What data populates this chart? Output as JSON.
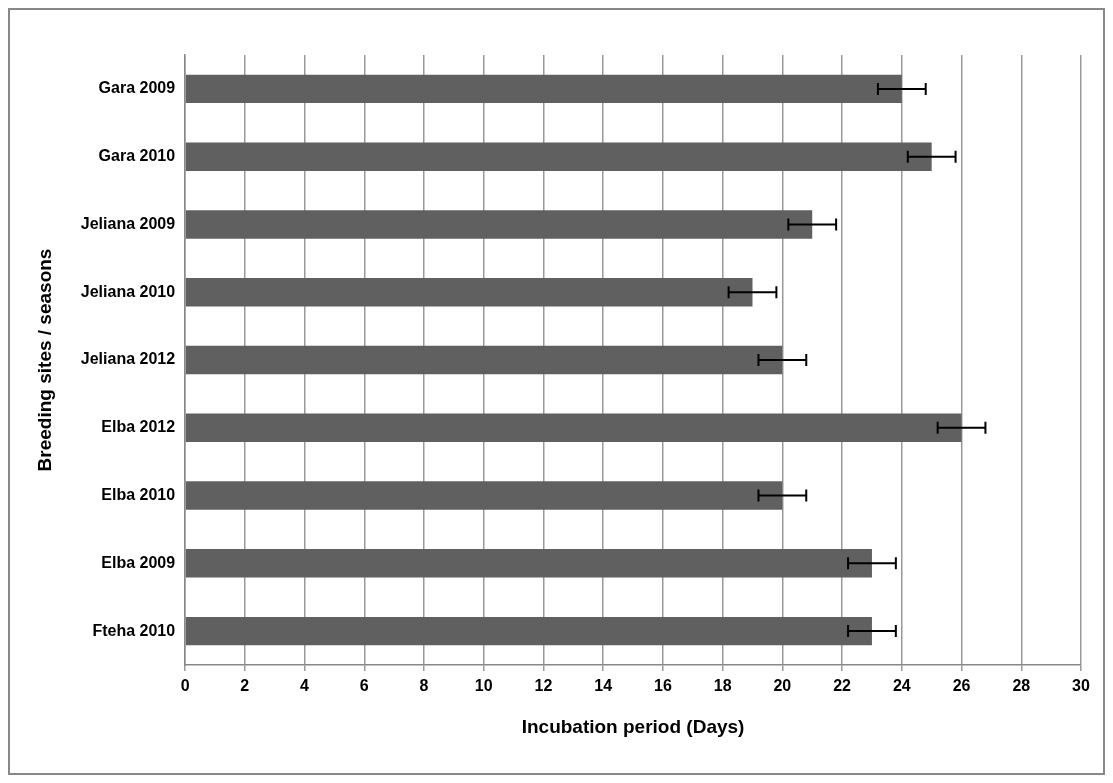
{
  "chart_data": {
    "type": "bar",
    "orientation": "horizontal",
    "xlabel": "Incubation period (Days)",
    "ylabel": "Breeding sites / seasons",
    "categories": [
      "Gara 2009",
      "Gara 2010",
      "Jeliana 2009",
      "Jeliana 2010",
      "Jeliana 2012",
      "Elba 2012",
      "Elba 2010",
      "Elba 2009",
      "Fteha 2010"
    ],
    "values": [
      24,
      25,
      21,
      19,
      20,
      26,
      20,
      23,
      23
    ],
    "errors": [
      0.8,
      0.8,
      0.8,
      0.8,
      0.8,
      0.8,
      0.8,
      0.8,
      0.8
    ],
    "color": "#606060",
    "xlim": [
      0,
      30
    ],
    "xticks": [
      0,
      2,
      4,
      6,
      8,
      10,
      12,
      14,
      16,
      18,
      20,
      22,
      24,
      26,
      28,
      30
    ],
    "grid": "x",
    "legend": false
  }
}
